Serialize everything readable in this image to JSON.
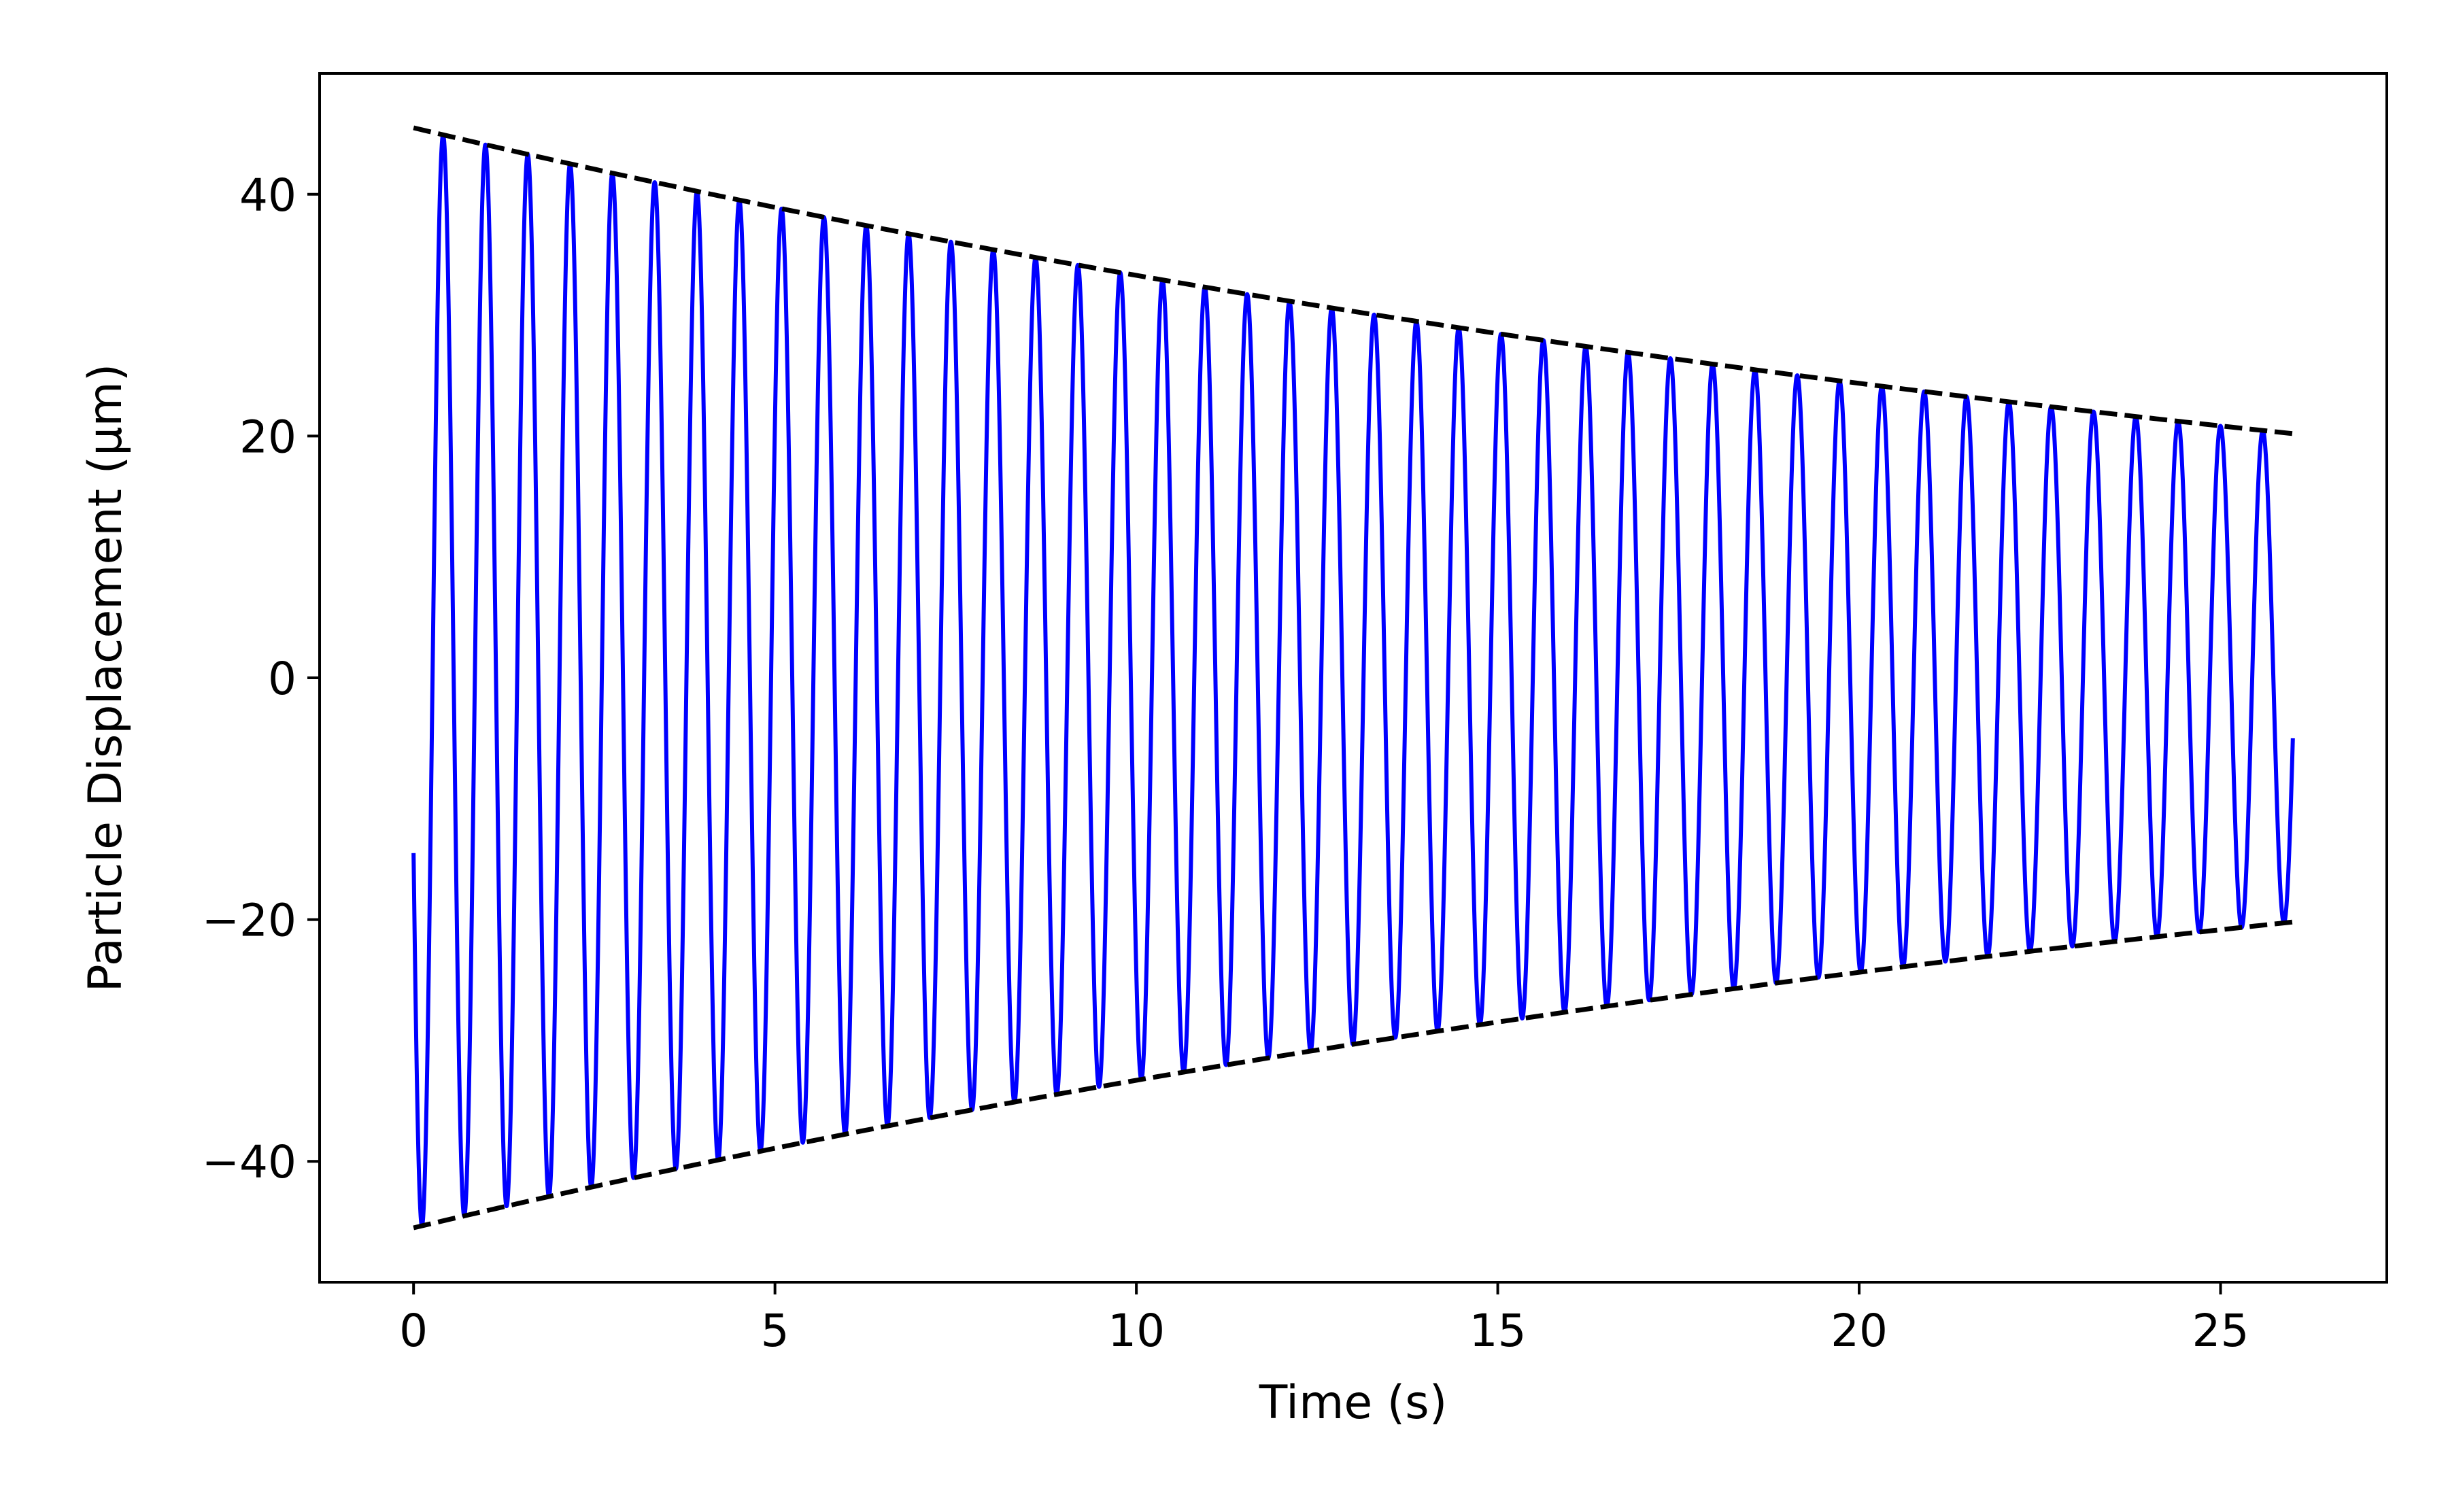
{
  "chart_data": {
    "type": "line",
    "xlabel": "Time (s)",
    "ylabel": "Particle Displacement (μm)",
    "xlim": [
      -1.3,
      27.3
    ],
    "ylim": [
      -50,
      50
    ],
    "xticks": [
      0,
      5,
      10,
      15,
      20,
      25
    ],
    "xtick_labels": [
      "0",
      "5",
      "10",
      "15",
      "20",
      "25"
    ],
    "yticks": [
      -40,
      -20,
      0,
      20,
      40
    ],
    "ytick_labels": [
      "−40",
      "−20",
      "0",
      "20",
      "40"
    ],
    "grid": false,
    "series": [
      {
        "kind": "damped-oscillation",
        "color": "#0000ff",
        "line_style": "solid",
        "t_start": 0,
        "t_end": 26,
        "start_value": -14.5,
        "end_value": -5,
        "amplitude_at_start": 45.5,
        "amplitude_at_end": 20.2,
        "cycles": 45
      },
      {
        "kind": "upper-envelope",
        "color": "#000000",
        "line_style": "dashed",
        "x": [
          0,
          26
        ],
        "y": [
          45.5,
          20.2
        ]
      },
      {
        "kind": "lower-envelope",
        "color": "#000000",
        "line_style": "dashed",
        "x": [
          0,
          26
        ],
        "y": [
          -45.5,
          -20.2
        ]
      }
    ]
  }
}
